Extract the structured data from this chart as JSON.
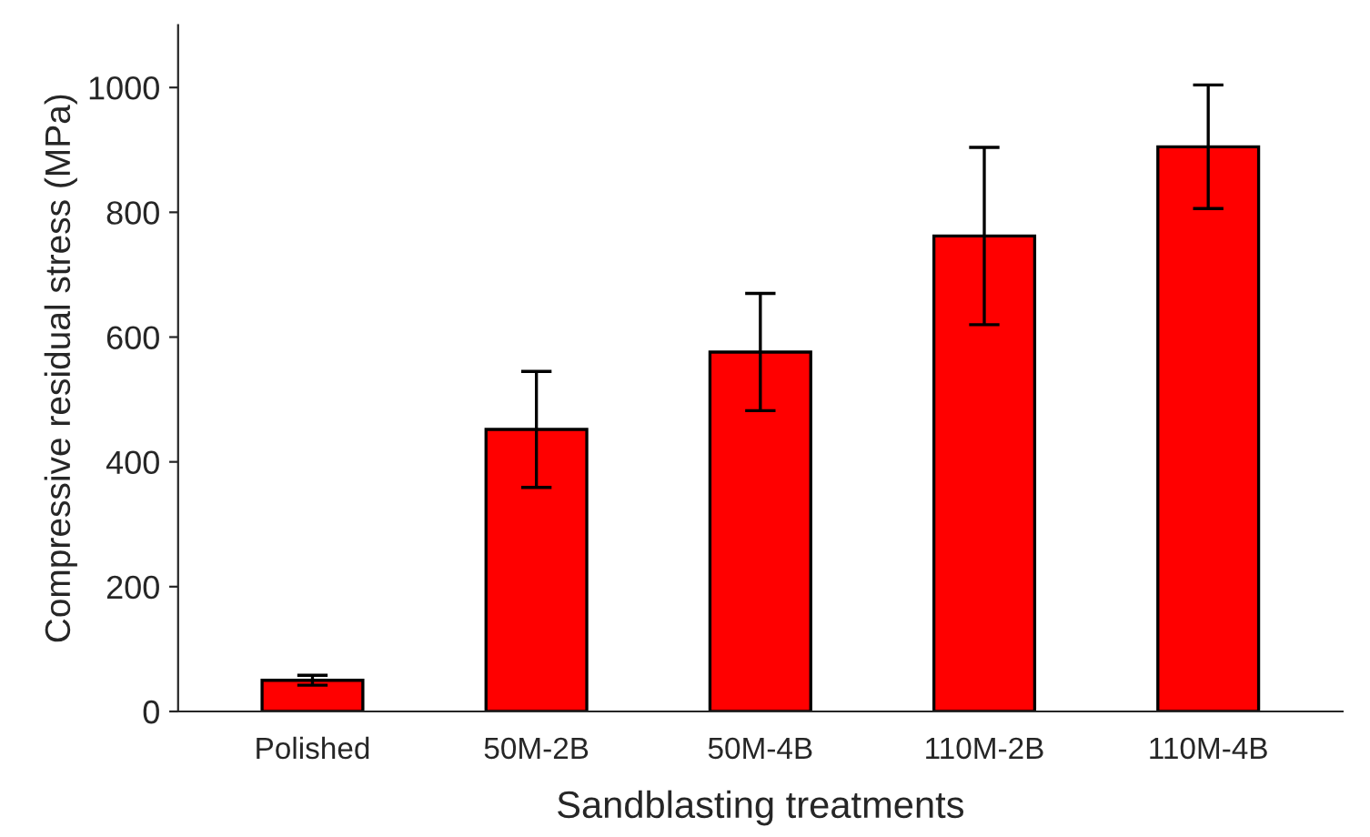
{
  "chart_data": {
    "type": "bar",
    "xlabel": "Sandblasting treatments",
    "ylabel": "Compressive residual stress (MPa)",
    "categories": [
      "Polished",
      "50M-2B",
      "50M-4B",
      "110M-2B",
      "110M-4B"
    ],
    "values": [
      50,
      452,
      576,
      762,
      905
    ],
    "errors": [
      8,
      93,
      94,
      142,
      99
    ],
    "color": "#ff0000",
    "ylim": [
      0,
      1100
    ],
    "yticks": [
      0,
      200,
      400,
      600,
      800,
      1000
    ],
    "grid": false,
    "legend": false
  }
}
